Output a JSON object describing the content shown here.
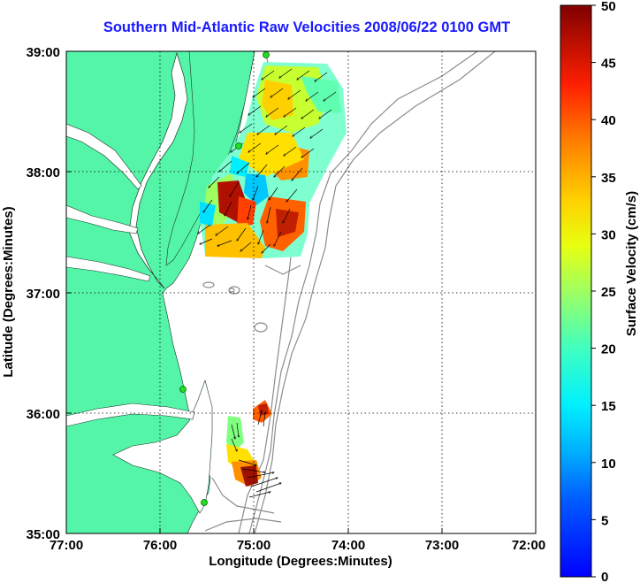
{
  "title": "Southern Mid-Atlantic Raw Velocities 2008/06/22 0100 GMT",
  "xlabel": "Longitude (Degrees:Minutes)",
  "ylabel": "Latitude (Degrees:Minutes)",
  "colorbar_label": "Surface Velocity (cm/s)",
  "x_ticks": [
    "77:00",
    "76:00",
    "75:00",
    "74:00",
    "73:00",
    "72:00"
  ],
  "y_ticks": [
    "39:00",
    "38:00",
    "37:00",
    "36:00",
    "35:00"
  ],
  "colorbar_ticks": [
    "50",
    "45",
    "40",
    "35",
    "30",
    "25",
    "20",
    "15",
    "10",
    "5",
    "0"
  ],
  "colors": {
    "land": "#55f5a9",
    "title": "#1a1aff",
    "bathymetry": "#8c8c8c",
    "station": "#22dd22"
  },
  "map": {
    "lon_range": [
      -77,
      -72
    ],
    "lat_range": [
      35,
      39
    ],
    "grid": true,
    "colorbar_range": [
      0,
      50
    ],
    "colormap": "jet"
  }
}
